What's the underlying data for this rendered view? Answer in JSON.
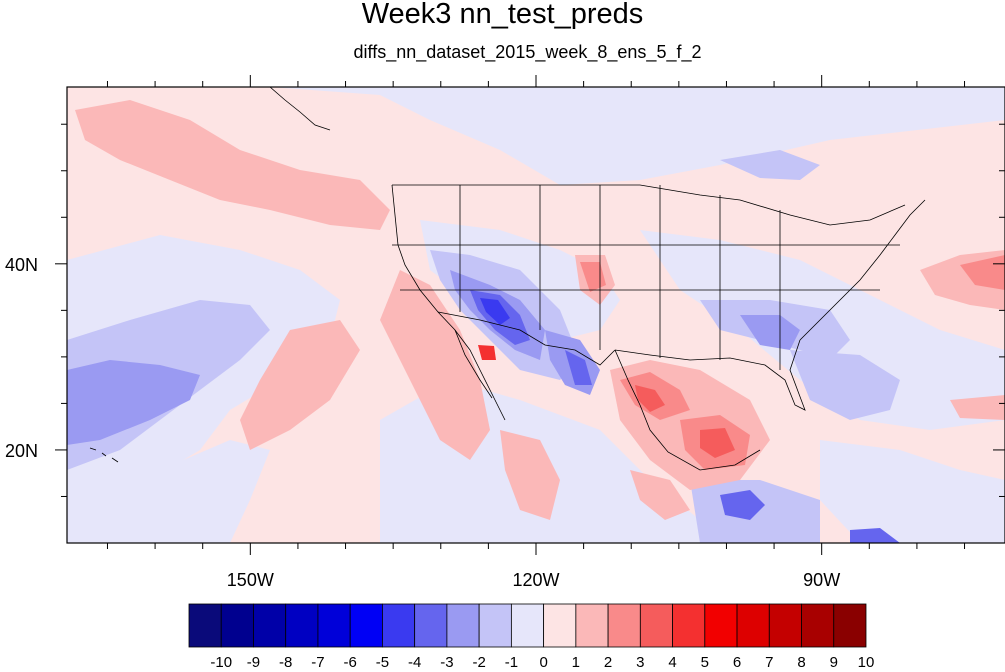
{
  "title": "Week3 nn_test_preds",
  "subtitle": "diffs_nn_dataset_2015_week_8_ens_5_f_2",
  "map": {
    "lon_range": [
      -169.25,
      -70.75
    ],
    "lat_range": [
      10,
      59
    ],
    "x_ticks": [
      {
        "lon": -150,
        "label": "150W"
      },
      {
        "lon": -120,
        "label": "120W"
      },
      {
        "lon": -90,
        "label": "90W"
      }
    ],
    "y_ticks": [
      {
        "lat": 40,
        "label": "40N"
      },
      {
        "lat": 20,
        "label": "20N"
      }
    ]
  },
  "colorbar": {
    "labels": [
      "-10",
      "-9",
      "-8",
      "-7",
      "-6",
      "-5",
      "-4",
      "-3",
      "-2",
      "-1",
      "0",
      "1",
      "2",
      "3",
      "4",
      "5",
      "6",
      "7",
      "8",
      "9",
      "10"
    ],
    "colors": [
      "#0a0a7a",
      "#00008f",
      "#0000a8",
      "#0000c2",
      "#0000d9",
      "#0000f5",
      "#3a3af0",
      "#6565ee",
      "#9a9af2",
      "#c4c4f7",
      "#e6e6fa",
      "#fde4e4",
      "#fbb8b8",
      "#f98a8a",
      "#f55c5c",
      "#f43030",
      "#f20000",
      "#dd0000",
      "#c40000",
      "#a80000",
      "#8a0000"
    ]
  },
  "colors": {
    "background": "#fde4e4",
    "weak_blue": "#e6e6fa",
    "mid_blue": "#c4c4f7",
    "blue": "#9a9af2",
    "strong_blue": "#6565ee",
    "deep_blue": "#3a3af0",
    "pink": "#fbb8b8",
    "salmon": "#f98a8a",
    "red": "#f55c5c",
    "strong_red": "#f43030"
  }
}
